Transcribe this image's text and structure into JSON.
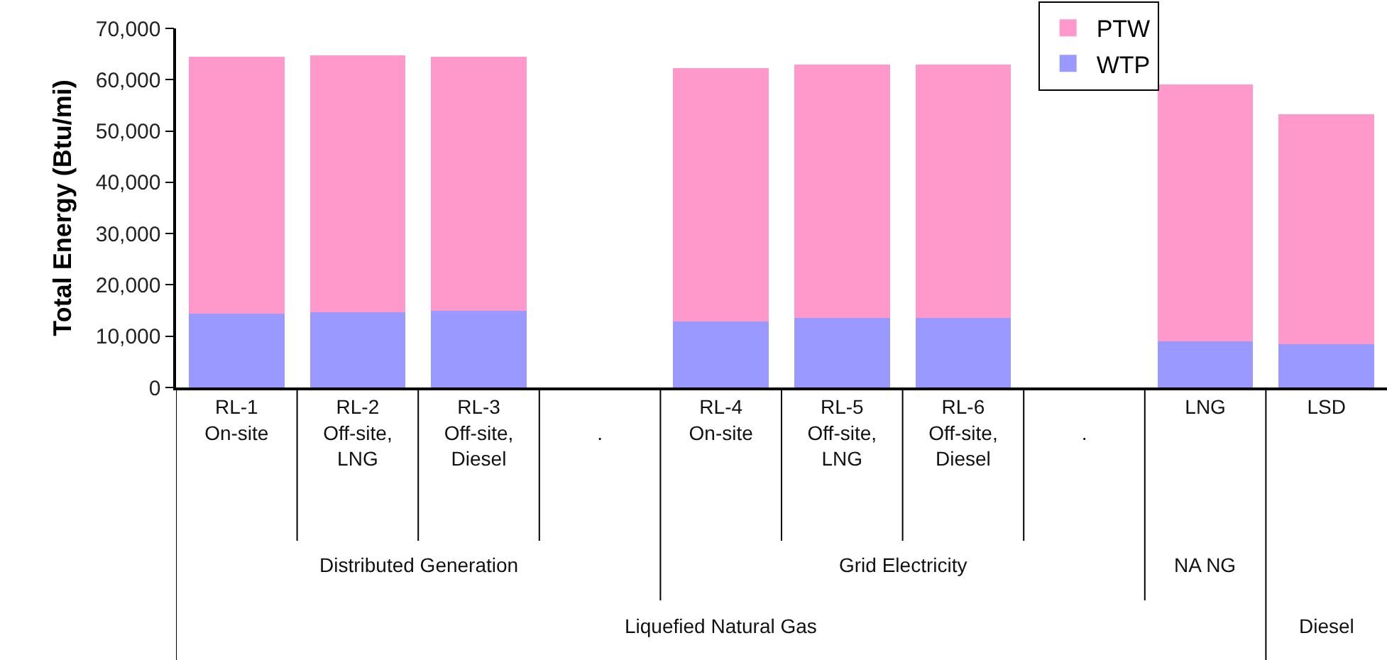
{
  "chart_data": {
    "type": "bar",
    "stacked": true,
    "ylabel": "Total Energy (Btu/mi)",
    "categories": [
      "RL-1\nOn-site",
      "RL-2\nOff-site,\nLNG",
      "RL-3\nOff-site,\nDiesel",
      "\n.",
      "RL-4\nOn-site",
      "RL-5\nOff-site,\nLNG",
      "RL-6\nOff-site,\nDiesel",
      "\n.",
      "LNG",
      "LSD"
    ],
    "series": [
      {
        "name": "WTP",
        "color": "#9999ff",
        "values": [
          14400,
          14700,
          14900,
          null,
          12800,
          13500,
          13500,
          null,
          9000,
          8500
        ]
      },
      {
        "name": "PTW",
        "color": "#ff99cc",
        "values": [
          50000,
          50000,
          49500,
          null,
          49500,
          49400,
          49400,
          null,
          50100,
          44700
        ]
      }
    ],
    "ylim": [
      0,
      70000
    ],
    "yticks": [
      {
        "value": 0,
        "label": "0"
      },
      {
        "value": 10000,
        "label": "10,000"
      },
      {
        "value": 20000,
        "label": "20,000"
      },
      {
        "value": 30000,
        "label": "30,000"
      },
      {
        "value": 40000,
        "label": "40,000"
      },
      {
        "value": 50000,
        "label": "50,000"
      },
      {
        "value": 60000,
        "label": "60,000"
      },
      {
        "value": 70000,
        "label": "70,000"
      }
    ],
    "grid": false,
    "legend": "top right",
    "annotations": [
      "Distributed Generation",
      "Grid Electricity",
      "NA NG",
      "Liquefied Natural Gas",
      "Diesel"
    ]
  }
}
